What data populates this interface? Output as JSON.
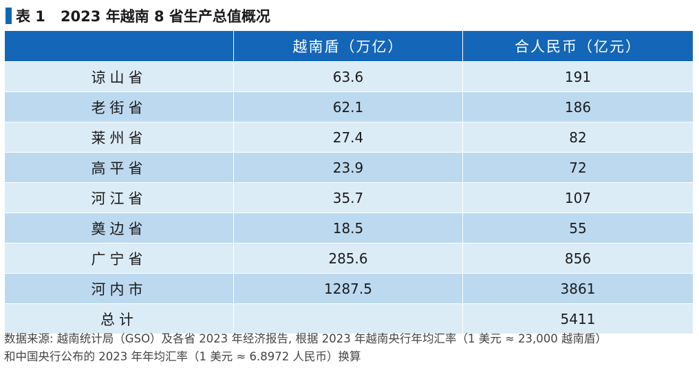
{
  "title": {
    "label": "表 1",
    "text": "2023 年越南 8 省生产总值概况"
  },
  "table": {
    "headers": [
      "",
      "越南盾（万亿）",
      "合人民币（亿元）"
    ],
    "rows": [
      {
        "province": "谅山省",
        "vnd": "63.6",
        "cny": "191"
      },
      {
        "province": "老街省",
        "vnd": "62.1",
        "cny": "186"
      },
      {
        "province": "莱州省",
        "vnd": "27.4",
        "cny": "82"
      },
      {
        "province": "高平省",
        "vnd": "23.9",
        "cny": "72"
      },
      {
        "province": "河江省",
        "vnd": "35.7",
        "cny": "107"
      },
      {
        "province": "奠边省",
        "vnd": "18.5",
        "cny": "55"
      },
      {
        "province": "广宁省",
        "vnd": "285.6",
        "cny": "856"
      },
      {
        "province": "河内市",
        "vnd": "1287.5",
        "cny": "3861"
      },
      {
        "province": "总计",
        "vnd": "",
        "cny": "5411"
      }
    ]
  },
  "footnote": {
    "line1": "数据来源: 越南统计局（GSO）及各省 2023 年经济报告, 根据 2023 年越南央行年均汇率（1 美元 ≈ 23,000 越南盾）",
    "line2": "和中国央行公布的 2023 年年均汇率（1 美元 ≈ 6.8972 人民币）换算"
  },
  "colors": {
    "accent": "#1466b8",
    "row_light": "#dcecf7",
    "row_dark": "#bcd9f0"
  }
}
